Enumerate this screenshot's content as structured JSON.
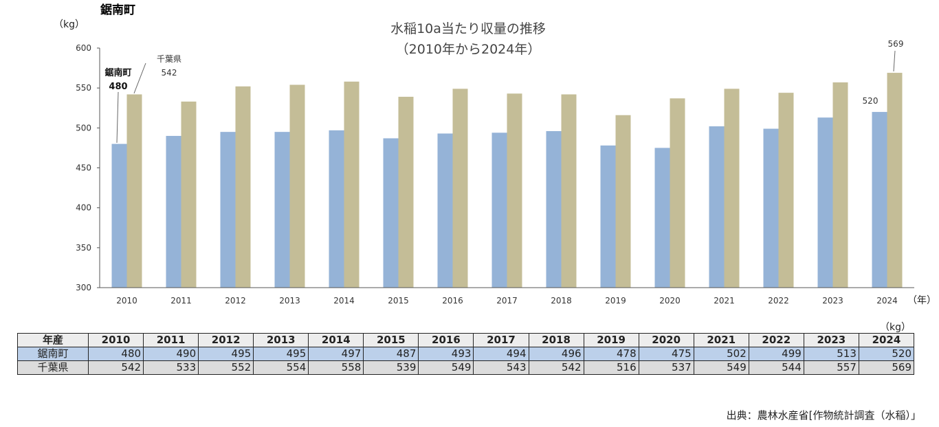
{
  "corner_title": "鋸南町",
  "chart_data": {
    "type": "bar",
    "title_line1": "水稲10a当たり収量の推移",
    "title_line2": "（2010年から2024年）",
    "ylabel": "（kg）",
    "xlabel": "（年）",
    "ylim": [
      300,
      600
    ],
    "yticks": [
      300,
      350,
      400,
      450,
      500,
      550,
      600
    ],
    "categories": [
      "2010",
      "2011",
      "2012",
      "2013",
      "2014",
      "2015",
      "2016",
      "2017",
      "2018",
      "2019",
      "2020",
      "2021",
      "2022",
      "2023",
      "2024"
    ],
    "series": [
      {
        "name": "鋸南町",
        "color": "#95b3d7",
        "values": [
          480,
          490,
          495,
          495,
          497,
          487,
          493,
          494,
          496,
          478,
          475,
          502,
          499,
          513,
          520
        ]
      },
      {
        "name": "千葉県",
        "color": "#c4bd97",
        "values": [
          542,
          533,
          552,
          554,
          558,
          539,
          549,
          543,
          542,
          516,
          537,
          549,
          544,
          557,
          569
        ]
      }
    ],
    "annotations": {
      "first_series1_name": "鋸南町",
      "first_series1_value": "480",
      "first_series2_name": "千葉県",
      "first_series2_value": "542",
      "last_series1_value": "520",
      "last_series2_value": "569"
    }
  },
  "table": {
    "unit": "（kg）",
    "header_label": "年産",
    "years": [
      "2010",
      "2011",
      "2012",
      "2013",
      "2014",
      "2015",
      "2016",
      "2017",
      "2018",
      "2019",
      "2020",
      "2021",
      "2022",
      "2023",
      "2024"
    ],
    "rows": [
      {
        "label": "鋸南町",
        "values": [
          "480",
          "490",
          "495",
          "495",
          "497",
          "487",
          "493",
          "494",
          "496",
          "478",
          "475",
          "502",
          "499",
          "513",
          "520"
        ]
      },
      {
        "label": "千葉県",
        "values": [
          "542",
          "533",
          "552",
          "554",
          "558",
          "539",
          "549",
          "543",
          "542",
          "516",
          "537",
          "549",
          "544",
          "557",
          "569"
        ]
      }
    ]
  },
  "source": "出典：農林水産省[作物統計調査（水稲）」"
}
